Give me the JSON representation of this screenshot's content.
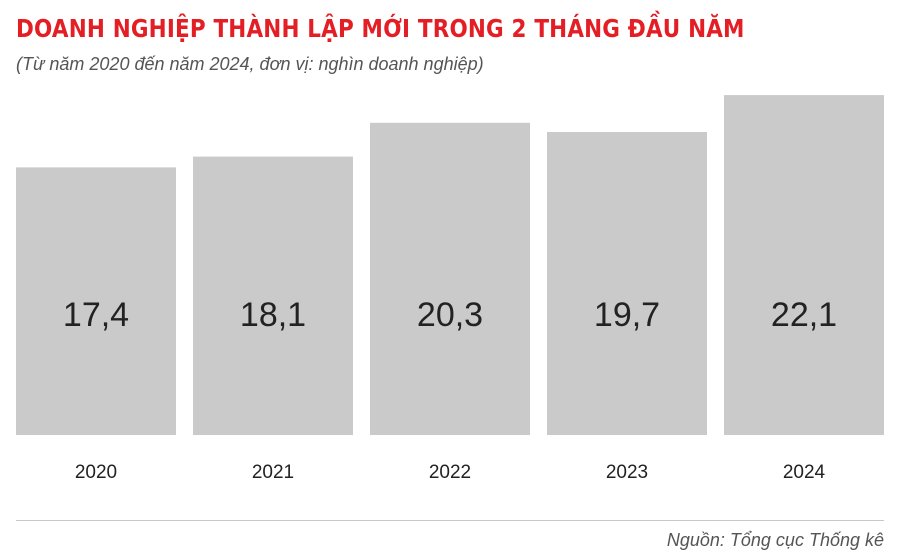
{
  "title": "DOANH NGHIỆP THÀNH LẬP MỚI TRONG 2 THÁNG ĐẦU NĂM",
  "subtitle": "(Từ năm 2020 đến năm 2024, đơn vị: nghìn doanh nghiệp)",
  "source": "Nguồn: Tổng cục Thống kê",
  "colors": {
    "title": "#e31e24",
    "bar": "#cbcacb",
    "text": "#222222"
  },
  "chart_data": {
    "type": "bar",
    "title": "DOANH NGHIỆP THÀNH LẬP MỚI TRONG 2 THÁNG ĐẦU NĂM",
    "subtitle": "(Từ năm 2020 đến năm 2024, đơn vị: nghìn doanh nghiệp)",
    "categories": [
      "2020",
      "2021",
      "2022",
      "2023",
      "2024"
    ],
    "values": [
      17.4,
      18.1,
      20.3,
      19.7,
      22.1
    ],
    "value_labels": [
      "17,4",
      "18,1",
      "20,3",
      "19,7",
      "22,1"
    ],
    "xlabel": "",
    "ylabel": "",
    "grid": false,
    "legend": "none"
  }
}
